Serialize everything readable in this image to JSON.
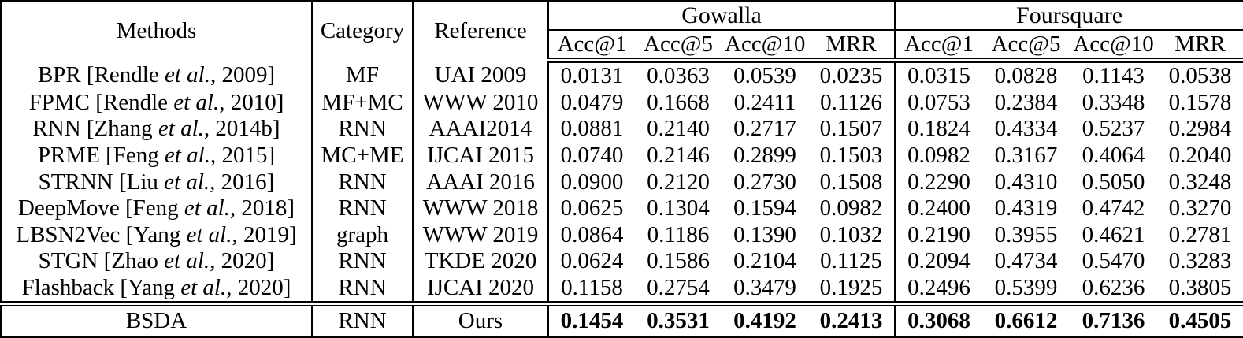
{
  "header": {
    "methods": "Methods",
    "category": "Category",
    "reference": "Reference",
    "groups": [
      {
        "label": "Gowalla",
        "metrics": [
          "Acc@1",
          "Acc@5",
          "Acc@10",
          "MRR"
        ]
      },
      {
        "label": "Foursquare",
        "metrics": [
          "Acc@1",
          "Acc@5",
          "Acc@10",
          "MRR"
        ]
      }
    ]
  },
  "rows": [
    {
      "method_pre": "BPR [Rendle ",
      "method_italic": "et al.",
      "method_post": ", 2009]",
      "category": "MF",
      "reference": "UAI 2009",
      "bold_values": false,
      "final": false,
      "values": [
        "0.0131",
        "0.0363",
        "0.0539",
        "0.0235",
        "0.0315",
        "0.0828",
        "0.1143",
        "0.0538"
      ]
    },
    {
      "method_pre": "FPMC [Rendle ",
      "method_italic": "et al.",
      "method_post": ", 2010]",
      "category": "MF+MC",
      "reference": "WWW 2010",
      "bold_values": false,
      "final": false,
      "values": [
        "0.0479",
        "0.1668",
        "0.2411",
        "0.1126",
        "0.0753",
        "0.2384",
        "0.3348",
        "0.1578"
      ]
    },
    {
      "method_pre": "RNN [Zhang ",
      "method_italic": "et al.",
      "method_post": ", 2014b]",
      "category": "RNN",
      "reference": "AAAI2014",
      "bold_values": false,
      "final": false,
      "values": [
        "0.0881",
        "0.2140",
        "0.2717",
        "0.1507",
        "0.1824",
        "0.4334",
        "0.5237",
        "0.2984"
      ]
    },
    {
      "method_pre": "PRME [Feng ",
      "method_italic": "et al.",
      "method_post": ", 2015]",
      "category": "MC+ME",
      "reference": "IJCAI 2015",
      "bold_values": false,
      "final": false,
      "values": [
        "0.0740",
        "0.2146",
        "0.2899",
        "0.1503",
        "0.0982",
        "0.3167",
        "0.4064",
        "0.2040"
      ]
    },
    {
      "method_pre": "STRNN [Liu ",
      "method_italic": "et al.",
      "method_post": ", 2016]",
      "category": "RNN",
      "reference": "AAAI 2016",
      "bold_values": false,
      "final": false,
      "values": [
        "0.0900",
        "0.2120",
        "0.2730",
        "0.1508",
        "0.2290",
        "0.4310",
        "0.5050",
        "0.3248"
      ]
    },
    {
      "method_pre": "DeepMove [Feng ",
      "method_italic": "et al.",
      "method_post": ", 2018]",
      "category": "RNN",
      "reference": "WWW 2018",
      "bold_values": false,
      "final": false,
      "values": [
        "0.0625",
        "0.1304",
        "0.1594",
        "0.0982",
        "0.2400",
        "0.4319",
        "0.4742",
        "0.3270"
      ]
    },
    {
      "method_pre": "LBSN2Vec [Yang ",
      "method_italic": "et al.",
      "method_post": ", 2019]",
      "category": "graph",
      "reference": "WWW 2019",
      "bold_values": false,
      "final": false,
      "values": [
        "0.0864",
        "0.1186",
        "0.1390",
        "0.1032",
        "0.2190",
        "0.3955",
        "0.4621",
        "0.2781"
      ]
    },
    {
      "method_pre": "STGN [Zhao ",
      "method_italic": "et al.",
      "method_post": ", 2020]",
      "category": "RNN",
      "reference": "TKDE 2020",
      "bold_values": false,
      "final": false,
      "values": [
        "0.0624",
        "0.1586",
        "0.2104",
        "0.1125",
        "0.2094",
        "0.4734",
        "0.5470",
        "0.3283"
      ]
    },
    {
      "method_pre": "Flashback [Yang ",
      "method_italic": "et al.",
      "method_post": ", 2020]",
      "category": "RNN",
      "reference": "IJCAI 2020",
      "bold_values": false,
      "final": false,
      "values": [
        "0.1158",
        "0.2754",
        "0.3479",
        "0.1925",
        "0.2496",
        "0.5399",
        "0.6236",
        "0.3805"
      ]
    },
    {
      "method_pre": "BSDA",
      "method_italic": "",
      "method_post": "",
      "category": "RNN",
      "reference": "Ours",
      "bold_values": true,
      "final": true,
      "values": [
        "0.1454",
        "0.3531",
        "0.4192",
        "0.2413",
        "0.3068",
        "0.6612",
        "0.7136",
        "0.4505"
      ]
    }
  ]
}
